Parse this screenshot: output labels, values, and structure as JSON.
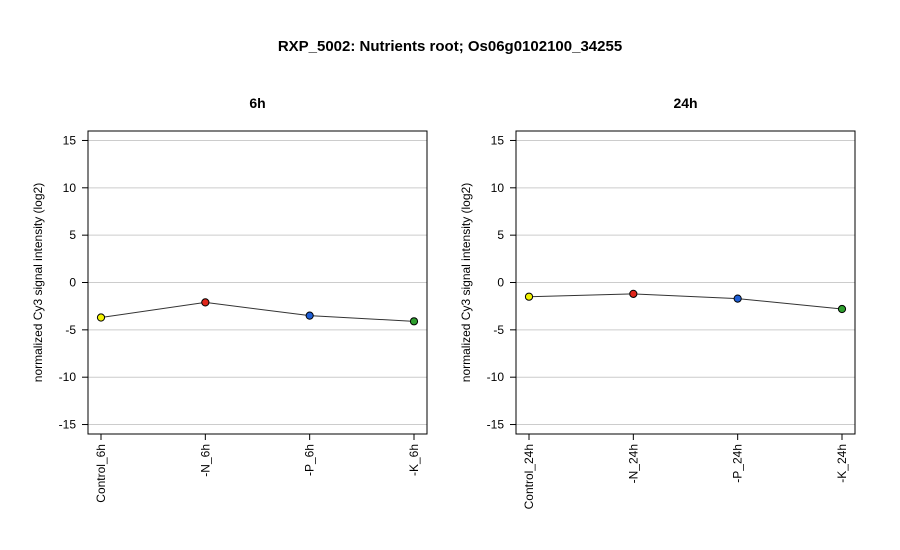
{
  "page_title": "RXP_5002: Nutrients root; Os06g0102100_34255",
  "chart_data": [
    {
      "type": "line",
      "title": "6h",
      "ylabel": "normalized Cy3 signal intensity (log2)",
      "categories": [
        "Control_6h",
        "-N_6h",
        "-P_6h",
        "-K_6h"
      ],
      "values": [
        -3.7,
        -2.1,
        -3.5,
        -4.1
      ],
      "point_colors": [
        "#f2f200",
        "#e0261b",
        "#1f5fd6",
        "#2e9e2e"
      ],
      "ylim": [
        -16,
        16
      ],
      "yticks": [
        15,
        10,
        5,
        0,
        -5,
        -10,
        -15
      ],
      "grid": true
    },
    {
      "type": "line",
      "title": "24h",
      "ylabel": "normalized Cy3 signal intensity (log2)",
      "categories": [
        "Control_24h",
        "-N_24h",
        "-P_24h",
        "-K_24h"
      ],
      "values": [
        -1.5,
        -1.2,
        -1.7,
        -2.8
      ],
      "point_colors": [
        "#f2f200",
        "#e0261b",
        "#1f5fd6",
        "#2e9e2e"
      ],
      "ylim": [
        -16,
        16
      ],
      "yticks": [
        15,
        10,
        5,
        0,
        -5,
        -10,
        -15
      ],
      "grid": true
    }
  ]
}
